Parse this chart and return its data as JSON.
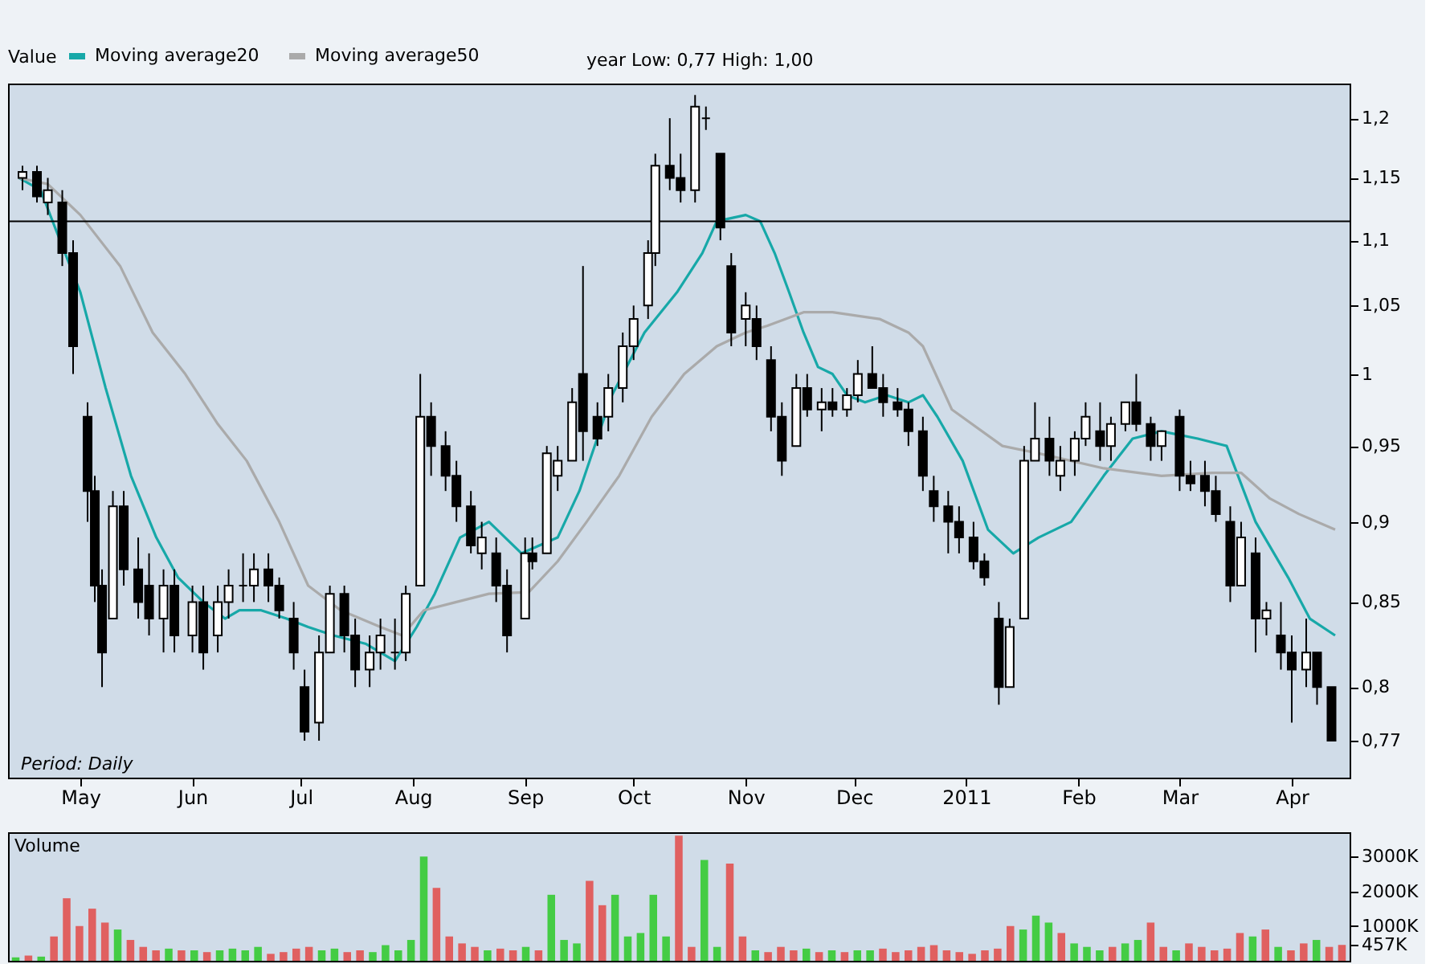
{
  "chart_data": [
    {
      "type": "candlestick",
      "legend_title": "Value",
      "legend": "top left",
      "log": true,
      "grid": false,
      "annotations": [
        "year Low: 0,77 High: 1,00",
        "Period: Daily"
      ],
      "ylim": [
        0.75,
        1.23
      ],
      "yticks": [
        {
          "value": 0.77,
          "label": "0,77"
        },
        {
          "value": 0.8,
          "label": "0,8"
        },
        {
          "value": 0.85,
          "label": "0,85"
        },
        {
          "value": 0.9,
          "label": "0,9"
        },
        {
          "value": 0.95,
          "label": "0,95"
        },
        1,
        {
          "value": 1.05,
          "label": "1,05"
        },
        {
          "value": 1.1,
          "label": "1,1"
        },
        {
          "value": 1.15,
          "label": "1,15"
        },
        {
          "value": 1.2,
          "label": "1,2"
        }
      ],
      "xlim": [
        "2010-04-11",
        "2011-04-17"
      ],
      "xticks": [
        {
          "value": "2010-05-01",
          "label": "May"
        },
        {
          "value": "2010-06-01",
          "label": "Jun"
        },
        {
          "value": "2010-07-01",
          "label": "Jul"
        },
        {
          "value": "2010-08-01",
          "label": "Aug"
        },
        {
          "value": "2010-09-01",
          "label": "Sep"
        },
        {
          "value": "2010-10-01",
          "label": "Oct"
        },
        {
          "value": "2010-11-01",
          "label": "Nov"
        },
        {
          "value": "2010-12-01",
          "label": "Dec"
        },
        {
          "value": "2011-01-01",
          "label": "2011"
        },
        {
          "value": "2011-02-01",
          "label": "Feb"
        },
        {
          "value": "2011-03-01",
          "label": "Mar"
        },
        {
          "value": "2011-04-01",
          "label": "Apr"
        }
      ],
      "ref_lines": [
        {
          "axis": "y",
          "value": 1.115,
          "color": "#000000"
        }
      ],
      "x": [
        "2010-04-15",
        "2010-04-19",
        "2010-04-22",
        "2010-04-26",
        "2010-04-29",
        "2010-05-03",
        "2010-05-05",
        "2010-05-07",
        "2010-05-10",
        "2010-05-13",
        "2010-05-17",
        "2010-05-20",
        "2010-05-24",
        "2010-05-27",
        "2010-06-01",
        "2010-06-04",
        "2010-06-08",
        "2010-06-11",
        "2010-06-15",
        "2010-06-18",
        "2010-06-22",
        "2010-06-25",
        "2010-06-29",
        "2010-07-02",
        "2010-07-06",
        "2010-07-09",
        "2010-07-13",
        "2010-07-16",
        "2010-07-20",
        "2010-07-23",
        "2010-07-27",
        "2010-07-30",
        "2010-08-03",
        "2010-08-06",
        "2010-08-10",
        "2010-08-13",
        "2010-08-17",
        "2010-08-20",
        "2010-08-24",
        "2010-08-27",
        "2010-09-01",
        "2010-09-03",
        "2010-09-07",
        "2010-09-10",
        "2010-09-14",
        "2010-09-17",
        "2010-09-21",
        "2010-09-24",
        "2010-09-28",
        "2010-10-01",
        "2010-10-05",
        "2010-10-07",
        "2010-10-11",
        "2010-10-14",
        "2010-10-18",
        "2010-10-21",
        "2010-10-25",
        "2010-10-28",
        "2010-11-01",
        "2010-11-04",
        "2010-11-08",
        "2010-11-11",
        "2010-11-15",
        "2010-11-18",
        "2010-11-22",
        "2010-11-25",
        "2010-11-29",
        "2010-12-02",
        "2010-12-06",
        "2010-12-09",
        "2010-12-13",
        "2010-12-16",
        "2010-12-20",
        "2010-12-23",
        "2010-12-27",
        "2010-12-30",
        "2011-01-03",
        "2011-01-06",
        "2011-01-10",
        "2011-01-13",
        "2011-01-17",
        "2011-01-20",
        "2011-01-24",
        "2011-01-27",
        "2011-01-31",
        "2011-02-03",
        "2011-02-07",
        "2011-02-10",
        "2011-02-14",
        "2011-02-17",
        "2011-02-21",
        "2011-02-24",
        "2011-03-01",
        "2011-03-04",
        "2011-03-08",
        "2011-03-11",
        "2011-03-15",
        "2011-03-18",
        "2011-03-22",
        "2011-03-25",
        "2011-03-29",
        "2011-04-01",
        "2011-04-05",
        "2011-04-08",
        "2011-04-12"
      ],
      "ohlc": [
        [
          1.15,
          1.16,
          1.14,
          1.155
        ],
        [
          1.155,
          1.16,
          1.13,
          1.135
        ],
        [
          1.13,
          1.15,
          1.12,
          1.14
        ],
        [
          1.13,
          1.14,
          1.08,
          1.09
        ],
        [
          1.09,
          1.1,
          1.0,
          1.02
        ],
        [
          0.97,
          0.98,
          0.9,
          0.92
        ],
        [
          0.92,
          0.93,
          0.85,
          0.86
        ],
        [
          0.86,
          0.87,
          0.8,
          0.82
        ],
        [
          0.84,
          0.92,
          0.84,
          0.91
        ],
        [
          0.91,
          0.92,
          0.86,
          0.87
        ],
        [
          0.87,
          0.89,
          0.84,
          0.85
        ],
        [
          0.86,
          0.88,
          0.83,
          0.84
        ],
        [
          0.84,
          0.87,
          0.82,
          0.86
        ],
        [
          0.86,
          0.87,
          0.82,
          0.83
        ],
        [
          0.83,
          0.86,
          0.82,
          0.85
        ],
        [
          0.85,
          0.86,
          0.81,
          0.82
        ],
        [
          0.83,
          0.86,
          0.82,
          0.85
        ],
        [
          0.85,
          0.87,
          0.84,
          0.86
        ],
        [
          0.86,
          0.88,
          0.85,
          0.86
        ],
        [
          0.86,
          0.88,
          0.85,
          0.87
        ],
        [
          0.87,
          0.88,
          0.85,
          0.86
        ],
        [
          0.86,
          0.865,
          0.84,
          0.845
        ],
        [
          0.84,
          0.85,
          0.81,
          0.82
        ],
        [
          0.8,
          0.81,
          0.77,
          0.775
        ],
        [
          0.78,
          0.83,
          0.77,
          0.82
        ],
        [
          0.82,
          0.86,
          0.82,
          0.855
        ],
        [
          0.855,
          0.86,
          0.82,
          0.83
        ],
        [
          0.83,
          0.84,
          0.8,
          0.81
        ],
        [
          0.81,
          0.83,
          0.8,
          0.82
        ],
        [
          0.82,
          0.84,
          0.81,
          0.83
        ],
        [
          0.82,
          0.84,
          0.81,
          0.82
        ],
        [
          0.82,
          0.86,
          0.815,
          0.855
        ],
        [
          0.86,
          1.0,
          0.86,
          0.97
        ],
        [
          0.97,
          0.98,
          0.93,
          0.95
        ],
        [
          0.95,
          0.96,
          0.92,
          0.93
        ],
        [
          0.93,
          0.94,
          0.9,
          0.91
        ],
        [
          0.91,
          0.92,
          0.88,
          0.885
        ],
        [
          0.88,
          0.9,
          0.87,
          0.89
        ],
        [
          0.88,
          0.89,
          0.85,
          0.86
        ],
        [
          0.86,
          0.87,
          0.82,
          0.83
        ],
        [
          0.84,
          0.89,
          0.84,
          0.88
        ],
        [
          0.88,
          0.89,
          0.87,
          0.875
        ],
        [
          0.88,
          0.95,
          0.88,
          0.945
        ],
        [
          0.93,
          0.95,
          0.92,
          0.94
        ],
        [
          0.94,
          0.99,
          0.94,
          0.98
        ],
        [
          1.0,
          1.08,
          0.94,
          0.96
        ],
        [
          0.97,
          0.98,
          0.95,
          0.955
        ],
        [
          0.97,
          1.0,
          0.96,
          0.99
        ],
        [
          0.99,
          1.03,
          0.98,
          1.02
        ],
        [
          1.02,
          1.05,
          1.01,
          1.04
        ],
        [
          1.05,
          1.1,
          1.04,
          1.09
        ],
        [
          1.09,
          1.17,
          1.08,
          1.16
        ],
        [
          1.16,
          1.2,
          1.14,
          1.15
        ],
        [
          1.15,
          1.17,
          1.13,
          1.14
        ],
        [
          1.14,
          1.22,
          1.13,
          1.21
        ],
        [
          1.2,
          1.21,
          1.19,
          1.2
        ],
        [
          1.17,
          1.17,
          1.1,
          1.11
        ],
        [
          1.08,
          1.09,
          1.02,
          1.03
        ],
        [
          1.04,
          1.06,
          1.02,
          1.05
        ],
        [
          1.04,
          1.05,
          1.01,
          1.02
        ],
        [
          1.01,
          1.02,
          0.96,
          0.97
        ],
        [
          0.97,
          0.98,
          0.93,
          0.94
        ],
        [
          0.95,
          1.0,
          0.95,
          0.99
        ],
        [
          0.99,
          1.0,
          0.97,
          0.975
        ],
        [
          0.975,
          0.99,
          0.96,
          0.98
        ],
        [
          0.98,
          0.99,
          0.97,
          0.975
        ],
        [
          0.975,
          0.99,
          0.97,
          0.985
        ],
        [
          0.985,
          1.01,
          0.98,
          1.0
        ],
        [
          1.0,
          1.02,
          0.99,
          0.99
        ],
        [
          0.99,
          1.0,
          0.97,
          0.98
        ],
        [
          0.98,
          0.99,
          0.97,
          0.975
        ],
        [
          0.975,
          0.98,
          0.95,
          0.96
        ],
        [
          0.96,
          0.97,
          0.92,
          0.93
        ],
        [
          0.92,
          0.93,
          0.9,
          0.91
        ],
        [
          0.91,
          0.92,
          0.88,
          0.9
        ],
        [
          0.9,
          0.91,
          0.88,
          0.89
        ],
        [
          0.89,
          0.9,
          0.87,
          0.875
        ],
        [
          0.875,
          0.88,
          0.86,
          0.865
        ],
        [
          0.84,
          0.85,
          0.79,
          0.8
        ],
        [
          0.8,
          0.84,
          0.8,
          0.835
        ],
        [
          0.84,
          0.95,
          0.84,
          0.94
        ],
        [
          0.94,
          0.98,
          0.94,
          0.955
        ],
        [
          0.955,
          0.97,
          0.93,
          0.94
        ],
        [
          0.93,
          0.95,
          0.92,
          0.94
        ],
        [
          0.94,
          0.96,
          0.93,
          0.955
        ],
        [
          0.955,
          0.98,
          0.95,
          0.97
        ],
        [
          0.96,
          0.98,
          0.94,
          0.95
        ],
        [
          0.95,
          0.97,
          0.94,
          0.965
        ],
        [
          0.965,
          0.98,
          0.96,
          0.98
        ],
        [
          0.98,
          1.0,
          0.96,
          0.965
        ],
        [
          0.965,
          0.97,
          0.94,
          0.95
        ],
        [
          0.95,
          0.96,
          0.94,
          0.96
        ],
        [
          0.97,
          0.975,
          0.92,
          0.93
        ],
        [
          0.93,
          0.94,
          0.92,
          0.925
        ],
        [
          0.93,
          0.94,
          0.91,
          0.92
        ],
        [
          0.92,
          0.93,
          0.9,
          0.905
        ],
        [
          0.9,
          0.91,
          0.85,
          0.86
        ],
        [
          0.86,
          0.9,
          0.86,
          0.89
        ],
        [
          0.88,
          0.89,
          0.82,
          0.84
        ],
        [
          0.84,
          0.85,
          0.83,
          0.845
        ],
        [
          0.83,
          0.85,
          0.81,
          0.82
        ],
        [
          0.82,
          0.83,
          0.78,
          0.81
        ],
        [
          0.81,
          0.84,
          0.8,
          0.82
        ],
        [
          0.82,
          0.82,
          0.79,
          0.8
        ],
        [
          0.8,
          0.8,
          0.77,
          0.77
        ]
      ],
      "series": [
        {
          "name": "Moving average20",
          "type": "line",
          "color": "#17a8a8",
          "x": [
            "2010-04-14",
            "2010-04-20",
            "2010-04-24",
            "2010-05-01",
            "2010-05-08",
            "2010-05-15",
            "2010-05-22",
            "2010-05-28",
            "2010-06-04",
            "2010-06-10",
            "2010-06-14",
            "2010-06-20",
            "2010-06-27",
            "2010-07-03",
            "2010-07-10",
            "2010-07-19",
            "2010-07-27",
            "2010-08-02",
            "2010-08-07",
            "2010-08-14",
            "2010-08-22",
            "2010-08-31",
            "2010-09-10",
            "2010-09-16",
            "2010-09-25",
            "2010-10-04",
            "2010-10-13",
            "2010-10-20",
            "2010-10-24",
            "2010-11-01",
            "2010-11-05",
            "2010-11-09",
            "2010-11-13",
            "2010-11-17",
            "2010-11-21",
            "2010-11-25",
            "2010-11-29",
            "2010-12-04",
            "2010-12-10",
            "2010-12-16",
            "2010-12-20",
            "2010-12-24",
            "2010-12-31",
            "2011-01-07",
            "2011-01-14",
            "2011-01-21",
            "2011-01-30",
            "2011-02-08",
            "2011-02-16",
            "2011-02-24",
            "2011-03-06",
            "2011-03-14",
            "2011-03-22",
            "2011-03-31",
            "2011-04-06",
            "2011-04-13"
          ],
          "values": [
            1.15,
            1.14,
            1.11,
            1.06,
            0.99,
            0.93,
            0.89,
            0.865,
            0.85,
            0.84,
            0.845,
            0.845,
            0.84,
            0.835,
            0.83,
            0.825,
            0.815,
            0.835,
            0.855,
            0.89,
            0.9,
            0.88,
            0.89,
            0.92,
            0.985,
            1.03,
            1.06,
            1.09,
            1.115,
            1.12,
            1.115,
            1.09,
            1.06,
            1.03,
            1.005,
            1.0,
            0.985,
            0.98,
            0.985,
            0.98,
            0.985,
            0.97,
            0.94,
            0.895,
            0.88,
            0.89,
            0.9,
            0.93,
            0.955,
            0.96,
            0.955,
            0.95,
            0.9,
            0.865,
            0.84,
            0.83
          ]
        },
        {
          "name": "Moving average50",
          "type": "line",
          "color": "#aaaaaa",
          "x": [
            "2010-04-14",
            "2010-04-22",
            "2010-05-01",
            "2010-05-12",
            "2010-05-21",
            "2010-05-30",
            "2010-06-08",
            "2010-06-16",
            "2010-06-25",
            "2010-07-03",
            "2010-07-12",
            "2010-07-23",
            "2010-07-29",
            "2010-08-04",
            "2010-08-13",
            "2010-08-22",
            "2010-09-02",
            "2010-09-10",
            "2010-09-18",
            "2010-09-27",
            "2010-10-06",
            "2010-10-15",
            "2010-10-24",
            "2010-11-01",
            "2010-11-07",
            "2010-11-17",
            "2010-11-25",
            "2010-12-08",
            "2010-12-16",
            "2010-12-20",
            "2010-12-28",
            "2011-01-11",
            "2011-01-21",
            "2011-02-08",
            "2011-02-24",
            "2011-03-10",
            "2011-03-18",
            "2011-03-26",
            "2011-04-03",
            "2011-04-13"
          ],
          "values": [
            1.15,
            1.145,
            1.12,
            1.08,
            1.03,
            1.0,
            0.965,
            0.94,
            0.9,
            0.86,
            0.845,
            0.835,
            0.83,
            0.845,
            0.85,
            0.855,
            0.856,
            0.875,
            0.9,
            0.93,
            0.97,
            1.0,
            1.02,
            1.03,
            1.035,
            1.045,
            1.045,
            1.04,
            1.03,
            1.02,
            0.975,
            0.95,
            0.945,
            0.935,
            0.93,
            0.932,
            0.932,
            0.915,
            0.905,
            0.895
          ]
        }
      ]
    },
    {
      "type": "bar",
      "title": "Volume",
      "tick_labels": "y",
      "grid": false,
      "ylim": [
        0,
        3700
      ],
      "yticks": [
        {
          "value": 457,
          "label": "457K"
        },
        {
          "value": 1000,
          "label": "1000K"
        },
        {
          "value": 2000,
          "label": "2000K"
        },
        {
          "value": 3000,
          "label": "3000K"
        }
      ],
      "categories": [
        null,
        null,
        null,
        null,
        null,
        null,
        null,
        null,
        null,
        null,
        null,
        null,
        null,
        null,
        null,
        null,
        null,
        null,
        null,
        null,
        null,
        null,
        null,
        null,
        null,
        null,
        null,
        null,
        null,
        null,
        null,
        null,
        null,
        null,
        null,
        null,
        null,
        null,
        null,
        null,
        null,
        null,
        null,
        null,
        null,
        null,
        null,
        null,
        null,
        null,
        null,
        null,
        null,
        null,
        null,
        null,
        null,
        null,
        null,
        null,
        null,
        null,
        null,
        null,
        null,
        null,
        null,
        null,
        null,
        null,
        null,
        null,
        null,
        null,
        null,
        null,
        null,
        null,
        null,
        null,
        null,
        null,
        null,
        null,
        null,
        null,
        null,
        null,
        null,
        null,
        null,
        null,
        null,
        null,
        null,
        null,
        null,
        null,
        null,
        null,
        null,
        null,
        null,
        null,
        null
      ],
      "values": [
        100,
        150,
        120,
        700,
        1800,
        1000,
        1500,
        1100,
        900,
        600,
        400,
        300,
        350,
        300,
        300,
        250,
        300,
        350,
        300,
        400,
        200,
        250,
        350,
        400,
        300,
        350,
        250,
        300,
        250,
        450,
        300,
        600,
        3000,
        2100,
        700,
        500,
        400,
        300,
        350,
        300,
        400,
        300,
        1900,
        600,
        500,
        2300,
        1600,
        1900,
        700,
        800,
        1900,
        700,
        3600,
        400,
        2900,
        400,
        2800,
        700,
        300,
        250,
        400,
        300,
        350,
        250,
        300,
        250,
        300,
        300,
        350,
        250,
        300,
        400,
        450,
        300,
        250,
        200,
        300,
        350,
        1000,
        900,
        1300,
        1100,
        800,
        500,
        400,
        300,
        400,
        500,
        600,
        1100,
        400,
        300,
        500,
        400,
        300,
        350,
        800,
        700,
        900,
        400,
        300,
        500,
        600,
        400,
        457
      ],
      "colors": [
        "#44cc44",
        "#e06060",
        "#44cc44",
        "#e06060",
        "#e06060",
        "#e06060",
        "#e06060",
        "#e06060",
        "#44cc44",
        "#e06060",
        "#e06060",
        "#e06060",
        "#44cc44",
        "#e06060",
        "#44cc44",
        "#e06060",
        "#44cc44",
        "#44cc44",
        "#44cc44",
        "#44cc44",
        "#e06060",
        "#e06060",
        "#e06060",
        "#e06060",
        "#44cc44",
        "#44cc44",
        "#e06060",
        "#e06060",
        "#44cc44",
        "#44cc44",
        "#44cc44",
        "#44cc44",
        "#44cc44",
        "#e06060",
        "#e06060",
        "#e06060",
        "#e06060",
        "#44cc44",
        "#e06060",
        "#e06060",
        "#44cc44",
        "#e06060",
        "#44cc44",
        "#44cc44",
        "#44cc44",
        "#e06060",
        "#e06060",
        "#44cc44",
        "#44cc44",
        "#44cc44",
        "#44cc44",
        "#44cc44",
        "#e06060",
        "#e06060",
        "#44cc44",
        "#44cc44",
        "#e06060",
        "#e06060",
        "#44cc44",
        "#e06060",
        "#e06060",
        "#e06060",
        "#44cc44",
        "#e06060",
        "#44cc44",
        "#e06060",
        "#44cc44",
        "#44cc44",
        "#e06060",
        "#e06060",
        "#e06060",
        "#e06060",
        "#e06060",
        "#e06060",
        "#e06060",
        "#e06060",
        "#e06060",
        "#e06060",
        "#e06060",
        "#44cc44",
        "#44cc44",
        "#44cc44",
        "#e06060",
        "#44cc44",
        "#44cc44",
        "#44cc44",
        "#e06060",
        "#44cc44",
        "#44cc44",
        "#e06060",
        "#e06060",
        "#44cc44",
        "#e06060",
        "#e06060",
        "#e06060",
        "#e06060",
        "#e06060",
        "#44cc44",
        "#e06060",
        "#44cc44",
        "#e06060",
        "#e06060",
        "#44cc44",
        "#e06060",
        "#e06060"
      ]
    }
  ]
}
